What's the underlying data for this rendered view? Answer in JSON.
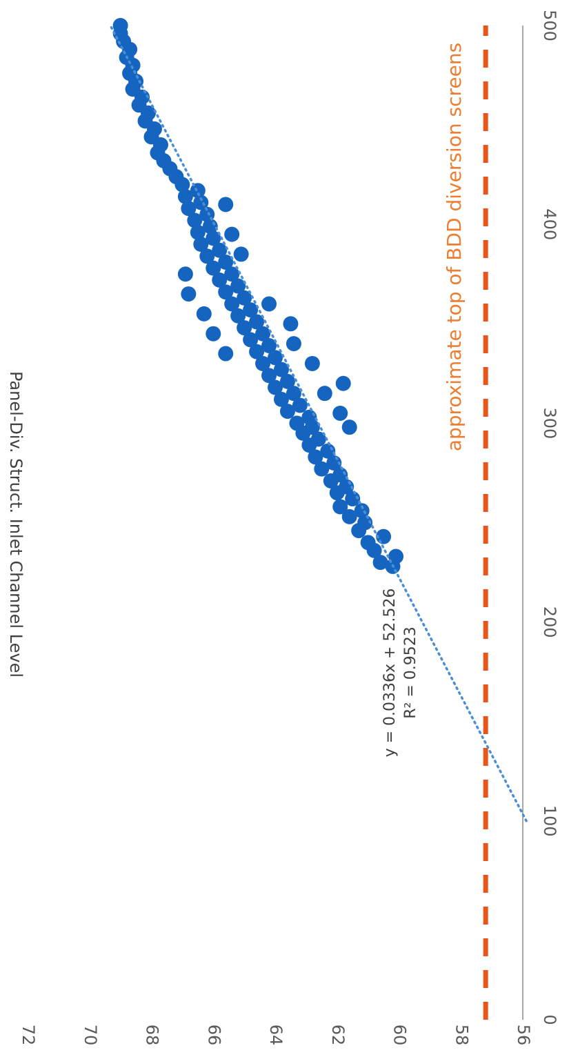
{
  "chart_data": {
    "type": "scatter",
    "title": "",
    "xlabel": "",
    "ylabel": "Panel-Div. Struct. Inlet Channel Level",
    "xlim": [
      0,
      500
    ],
    "ylim": [
      56,
      72
    ],
    "x_ticks": [
      "0",
      "100",
      "200",
      "300",
      "400",
      "500"
    ],
    "y_ticks": [
      "56",
      "58",
      "60",
      "62",
      "64",
      "66",
      "68",
      "70",
      "72"
    ],
    "grid": false,
    "orientation": "rotated 90 degrees clockwise",
    "colors": {
      "points": "#1565c0",
      "trendline": "#4a8fd6",
      "threshold": "#e8541a",
      "threshold_label": "#ed7d31",
      "axis": "#8a8a8a"
    },
    "series": [
      {
        "values": [
          [
            228,
            60.2
          ],
          [
            230,
            60.6
          ],
          [
            233,
            60.1
          ],
          [
            236,
            60.8
          ],
          [
            240,
            61.0
          ],
          [
            243,
            60.5
          ],
          [
            246,
            61.3
          ],
          [
            250,
            61.1
          ],
          [
            253,
            61.6
          ],
          [
            256,
            61.2
          ],
          [
            258,
            61.9
          ],
          [
            262,
            61.5
          ],
          [
            265,
            62.0
          ],
          [
            268,
            61.7
          ],
          [
            271,
            62.2
          ],
          [
            274,
            61.9
          ],
          [
            277,
            62.5
          ],
          [
            280,
            62.1
          ],
          [
            283,
            62.7
          ],
          [
            286,
            62.3
          ],
          [
            289,
            62.9
          ],
          [
            292,
            62.6
          ],
          [
            295,
            63.1
          ],
          [
            298,
            62.8
          ],
          [
            300,
            63.3
          ],
          [
            303,
            62.9
          ],
          [
            306,
            63.6
          ],
          [
            309,
            63.2
          ],
          [
            312,
            63.8
          ],
          [
            315,
            63.4
          ],
          [
            318,
            64.0
          ],
          [
            321,
            63.6
          ],
          [
            324,
            64.2
          ],
          [
            327,
            63.8
          ],
          [
            330,
            64.4
          ],
          [
            333,
            64.0
          ],
          [
            336,
            64.6
          ],
          [
            339,
            64.2
          ],
          [
            342,
            64.8
          ],
          [
            345,
            64.4
          ],
          [
            348,
            65.0
          ],
          [
            351,
            64.6
          ],
          [
            354,
            65.2
          ],
          [
            357,
            64.8
          ],
          [
            360,
            65.4
          ],
          [
            363,
            65.0
          ],
          [
            366,
            65.6
          ],
          [
            369,
            65.2
          ],
          [
            372,
            65.8
          ],
          [
            375,
            65.4
          ],
          [
            378,
            66.0
          ],
          [
            381,
            65.6
          ],
          [
            384,
            66.2
          ],
          [
            387,
            65.8
          ],
          [
            390,
            66.4
          ],
          [
            393,
            66.0
          ],
          [
            396,
            66.5
          ],
          [
            399,
            66.1
          ],
          [
            402,
            66.6
          ],
          [
            405,
            66.2
          ],
          [
            408,
            66.8
          ],
          [
            411,
            66.4
          ],
          [
            414,
            66.9
          ],
          [
            417,
            66.5
          ],
          [
            420,
            67.0
          ],
          [
            424,
            67.2
          ],
          [
            428,
            67.4
          ],
          [
            432,
            67.6
          ],
          [
            436,
            67.8
          ],
          [
            440,
            67.7
          ],
          [
            444,
            68.0
          ],
          [
            448,
            67.9
          ],
          [
            452,
            68.2
          ],
          [
            456,
            68.1
          ],
          [
            460,
            68.4
          ],
          [
            464,
            68.3
          ],
          [
            468,
            68.6
          ],
          [
            472,
            68.5
          ],
          [
            476,
            68.7
          ],
          [
            480,
            68.6
          ],
          [
            484,
            68.8
          ],
          [
            488,
            68.7
          ],
          [
            492,
            68.9
          ],
          [
            496,
            69.0
          ],
          [
            500,
            69.0
          ],
          [
            330,
            62.8
          ],
          [
            340,
            63.4
          ],
          [
            350,
            63.5
          ],
          [
            360,
            64.2
          ],
          [
            305,
            61.9
          ],
          [
            315,
            62.4
          ],
          [
            320,
            61.8
          ],
          [
            298,
            61.6
          ],
          [
            335,
            65.6
          ],
          [
            345,
            66.0
          ],
          [
            355,
            66.3
          ],
          [
            365,
            66.8
          ],
          [
            375,
            66.9
          ],
          [
            385,
            65.1
          ],
          [
            395,
            65.4
          ],
          [
            410,
            65.6
          ]
        ]
      }
    ],
    "trendline": {
      "equation": "y = 0.0336x + 52.526",
      "r2": "R² = 0.9523",
      "slope": 0.0336,
      "intercept": 52.526,
      "x_range": [
        100,
        500
      ]
    },
    "threshold": {
      "y": 57.2,
      "label": "approximate top of BDD diversion screens"
    }
  }
}
